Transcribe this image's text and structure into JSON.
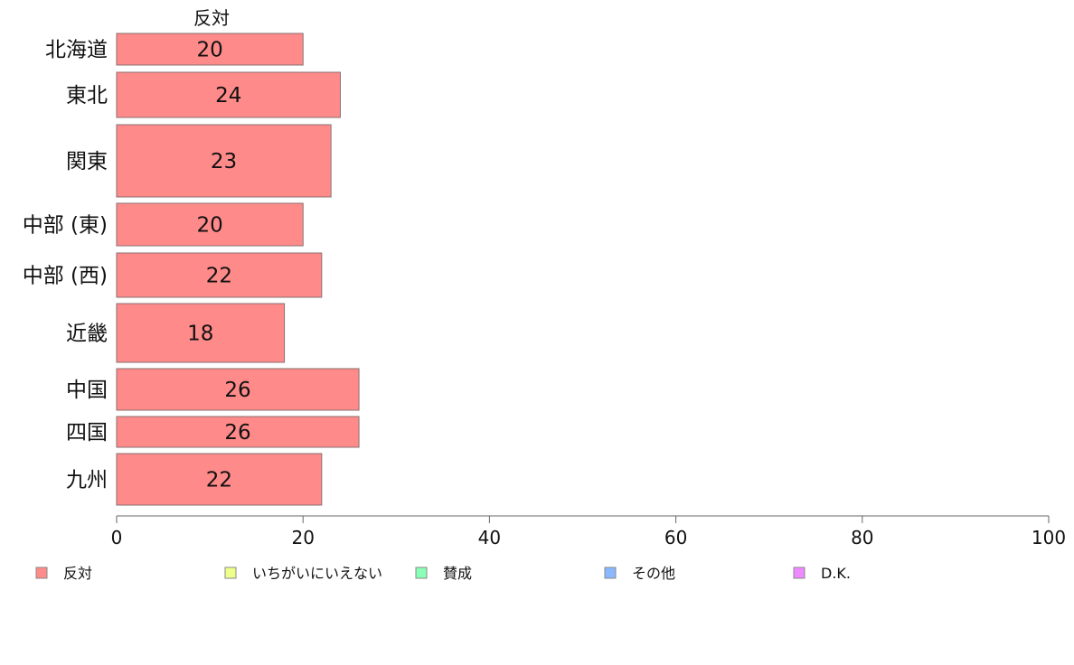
{
  "chart_data": {
    "type": "bar",
    "orientation": "horizontal",
    "series_title": "反対",
    "categories": [
      "北海道",
      "東北",
      "関東",
      "中部 (東)",
      "中部 (西)",
      "近畿",
      "中国",
      "四国",
      "九州"
    ],
    "series": [
      {
        "name": "反対",
        "values": [
          20,
          24,
          23,
          20,
          22,
          18,
          26,
          26,
          22
        ],
        "color": "#ff8a8a"
      }
    ],
    "xlim": [
      0,
      100
    ],
    "xticks": [
      0,
      20,
      40,
      60,
      80,
      100
    ],
    "legend": [
      {
        "label": "反対",
        "color": "#ff8a8a"
      },
      {
        "label": "いちがいにいえない",
        "color": "#eeff8a"
      },
      {
        "label": "賛成",
        "color": "#8affb8"
      },
      {
        "label": "その他",
        "color": "#8ab8ff"
      },
      {
        "label": "D.K.",
        "color": "#ee8aff"
      }
    ],
    "legend_position": "bottom",
    "grid": false
  }
}
